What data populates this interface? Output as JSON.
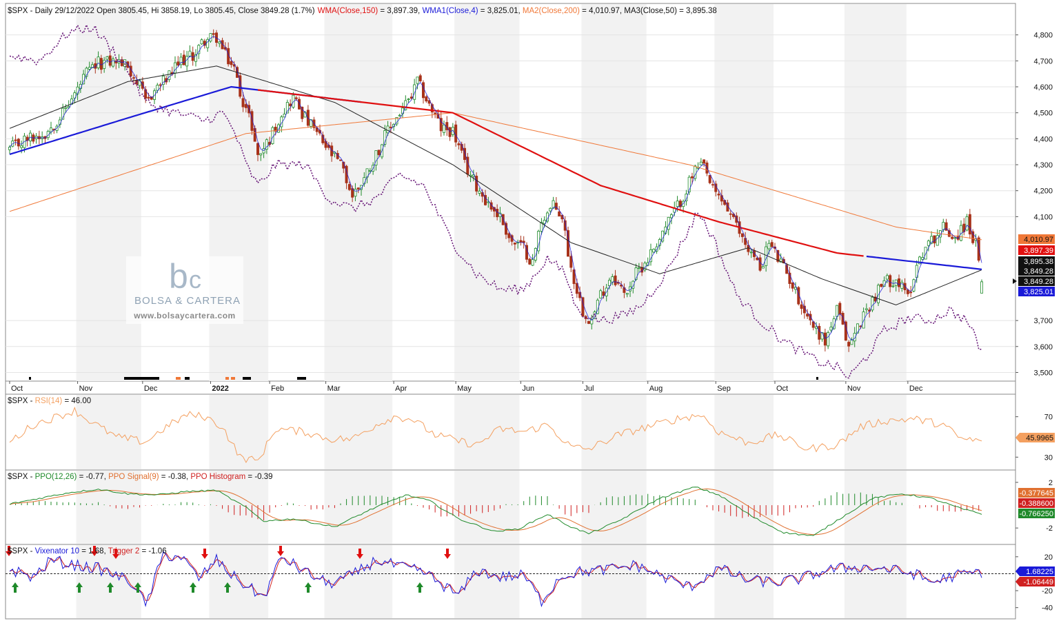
{
  "chart_data": {
    "type": "candlestick",
    "symbol": "$SPX",
    "colors": {
      "up": "#1f8a2a",
      "down": "#a8321a",
      "wma150": "#e01010",
      "wma4": "#1a1ad8",
      "ma200": "#f07838",
      "ma50": "#222222",
      "dotted": "#6a1a7a",
      "rsi": "#f4a060",
      "ppo": "#1f8a2a",
      "ppo_signal": "#e07030",
      "ppo_hist_up": "#1f8a2a",
      "ppo_hist_down": "#d02020",
      "vix": "#1a1ad8",
      "trigger": "#d02020"
    },
    "header": {
      "prefix": "$SPX - Daily 29/12/2022 Open 3805.45, Hi 3858.19, Lo 3805.45, Close 3849.28 (1.7%)",
      "wma150": "WMA(Close,150)",
      "wma150_val": " = 3,897.39, ",
      "wma4": "WMA1(Close,4)",
      "wma4_val": " = 3,825.01, ",
      "ma200": "MA2(Close,200)",
      "ma200_val": " = 4,010.97, ",
      "ma50": "MA3(Close,50) = 3,895.38"
    },
    "price_axis": {
      "ticks": [
        "4,800",
        "4,700",
        "4,600",
        "4,500",
        "4,400",
        "4,300",
        "4,200",
        "4,100",
        "3,700",
        "3,600",
        "3,500"
      ],
      "values": [
        4800,
        4700,
        4600,
        4500,
        4400,
        4300,
        4200,
        4100,
        3700,
        3600,
        3500
      ],
      "ylim": [
        3480,
        4860
      ]
    },
    "price_badges": [
      {
        "label": "4,010.97",
        "value": 4010.97,
        "color": "#f07838"
      },
      {
        "label": "3,897.39",
        "value": 3897.39,
        "color": "#e01010"
      },
      {
        "label": "3,895.38",
        "value": 3895.38,
        "color": "#111111"
      },
      {
        "label": "3,849.28",
        "value": 3849.28,
        "color": "#111111"
      },
      {
        "label": "3,849.28",
        "value": 3849.28,
        "color": "#111111"
      },
      {
        "label": "3,825.01",
        "value": 3825.01,
        "color": "#1a1ad8"
      }
    ],
    "months": [
      "Oct",
      "Nov",
      "Dec",
      "2022",
      "Feb",
      "Mar",
      "Apr",
      "May",
      "Jun",
      "Jul",
      "Aug",
      "Sep",
      "Oct",
      "Nov",
      "Dec"
    ],
    "month_start_index": [
      0,
      23,
      45,
      68,
      88,
      107,
      130,
      151,
      173,
      194,
      216,
      239,
      259,
      283,
      304
    ],
    "n_days": 330,
    "price_keyframes": [
      [
        0,
        4360
      ],
      [
        6,
        4400
      ],
      [
        12,
        4420
      ],
      [
        18,
        4500
      ],
      [
        22,
        4570
      ],
      [
        26,
        4650
      ],
      [
        30,
        4690
      ],
      [
        36,
        4700
      ],
      [
        40,
        4680
      ],
      [
        44,
        4600
      ],
      [
        46,
        4540
      ],
      [
        50,
        4600
      ],
      [
        54,
        4640
      ],
      [
        58,
        4700
      ],
      [
        62,
        4720
      ],
      [
        66,
        4780
      ],
      [
        70,
        4790
      ],
      [
        73,
        4720
      ],
      [
        76,
        4670
      ],
      [
        78,
        4580
      ],
      [
        82,
        4450
      ],
      [
        84,
        4330
      ],
      [
        88,
        4400
      ],
      [
        92,
        4500
      ],
      [
        96,
        4560
      ],
      [
        100,
        4480
      ],
      [
        104,
        4420
      ],
      [
        108,
        4350
      ],
      [
        112,
        4300
      ],
      [
        116,
        4180
      ],
      [
        120,
        4250
      ],
      [
        124,
        4340
      ],
      [
        128,
        4430
      ],
      [
        132,
        4500
      ],
      [
        136,
        4560
      ],
      [
        138,
        4620
      ],
      [
        142,
        4530
      ],
      [
        146,
        4440
      ],
      [
        150,
        4430
      ],
      [
        154,
        4300
      ],
      [
        158,
        4220
      ],
      [
        162,
        4150
      ],
      [
        166,
        4100
      ],
      [
        170,
        4000
      ],
      [
        174,
        3980
      ],
      [
        177,
        3920
      ],
      [
        180,
        4090
      ],
      [
        184,
        4140
      ],
      [
        187,
        4100
      ],
      [
        190,
        3900
      ],
      [
        194,
        3740
      ],
      [
        197,
        3700
      ],
      [
        200,
        3800
      ],
      [
        204,
        3880
      ],
      [
        208,
        3800
      ],
      [
        212,
        3880
      ],
      [
        216,
        3940
      ],
      [
        220,
        4020
      ],
      [
        224,
        4100
      ],
      [
        228,
        4180
      ],
      [
        232,
        4280
      ],
      [
        235,
        4290
      ],
      [
        238,
        4200
      ],
      [
        242,
        4150
      ],
      [
        246,
        4060
      ],
      [
        250,
        3980
      ],
      [
        254,
        3900
      ],
      [
        257,
        4000
      ],
      [
        260,
        3940
      ],
      [
        264,
        3860
      ],
      [
        268,
        3760
      ],
      [
        272,
        3680
      ],
      [
        276,
        3620
      ],
      [
        280,
        3740
      ],
      [
        284,
        3600
      ],
      [
        288,
        3700
      ],
      [
        292,
        3780
      ],
      [
        296,
        3850
      ],
      [
        300,
        3860
      ],
      [
        304,
        3790
      ],
      [
        308,
        3950
      ],
      [
        312,
        4010
      ],
      [
        316,
        4060
      ],
      [
        320,
        4020
      ],
      [
        324,
        4080
      ],
      [
        327,
        3990
      ],
      [
        329,
        3849
      ]
    ],
    "ma200_keyframes": [
      [
        0,
        4120
      ],
      [
        80,
        4420
      ],
      [
        150,
        4500
      ],
      [
        230,
        4300
      ],
      [
        300,
        4060
      ],
      [
        329,
        4011
      ]
    ],
    "wma150_keyframes": [
      [
        0,
        4340
      ],
      [
        40,
        4480
      ],
      [
        75,
        4600
      ],
      [
        120,
        4540
      ],
      [
        150,
        4500
      ],
      [
        200,
        4220
      ],
      [
        240,
        4080
      ],
      [
        280,
        3960
      ],
      [
        329,
        3897
      ]
    ],
    "ma50_keyframes": [
      [
        0,
        4440
      ],
      [
        40,
        4620
      ],
      [
        70,
        4680
      ],
      [
        110,
        4540
      ],
      [
        150,
        4300
      ],
      [
        190,
        4000
      ],
      [
        220,
        3880
      ],
      [
        250,
        3980
      ],
      [
        275,
        3860
      ],
      [
        300,
        3760
      ],
      [
        329,
        3895
      ]
    ],
    "dotted_keyframes": [
      [
        0,
        4720
      ],
      [
        10,
        4700
      ],
      [
        20,
        4810
      ],
      [
        28,
        4830
      ],
      [
        38,
        4700
      ],
      [
        46,
        4540
      ],
      [
        56,
        4500
      ],
      [
        66,
        4470
      ],
      [
        72,
        4500
      ],
      [
        76,
        4430
      ],
      [
        80,
        4300
      ],
      [
        84,
        4220
      ],
      [
        90,
        4300
      ],
      [
        100,
        4300
      ],
      [
        108,
        4170
      ],
      [
        116,
        4130
      ],
      [
        124,
        4170
      ],
      [
        132,
        4260
      ],
      [
        140,
        4220
      ],
      [
        150,
        4000
      ],
      [
        158,
        3880
      ],
      [
        166,
        3820
      ],
      [
        174,
        3820
      ],
      [
        178,
        3880
      ],
      [
        182,
        3940
      ],
      [
        188,
        3880
      ],
      [
        192,
        3740
      ],
      [
        200,
        3700
      ],
      [
        208,
        3720
      ],
      [
        214,
        3760
      ],
      [
        222,
        3880
      ],
      [
        228,
        4010
      ],
      [
        233,
        4120
      ],
      [
        238,
        4020
      ],
      [
        246,
        3800
      ],
      [
        254,
        3700
      ],
      [
        262,
        3620
      ],
      [
        268,
        3580
      ],
      [
        274,
        3540
      ],
      [
        280,
        3520
      ],
      [
        284,
        3480
      ],
      [
        290,
        3560
      ],
      [
        296,
        3660
      ],
      [
        304,
        3710
      ],
      [
        312,
        3700
      ],
      [
        318,
        3740
      ],
      [
        324,
        3700
      ],
      [
        329,
        3580
      ]
    ],
    "rsi": {
      "label": "$SPX - ",
      "name": "RSI(14)",
      "value_text": " = 46.00",
      "badge": "45.9965",
      "ticks": [
        "70",
        "30"
      ],
      "tick_values": [
        70,
        30
      ],
      "ylim": [
        20,
        80
      ],
      "keyframes": [
        [
          0,
          45
        ],
        [
          8,
          62
        ],
        [
          16,
          70
        ],
        [
          22,
          76
        ],
        [
          26,
          68
        ],
        [
          36,
          50
        ],
        [
          46,
          45
        ],
        [
          52,
          58
        ],
        [
          60,
          72
        ],
        [
          66,
          70
        ],
        [
          72,
          60
        ],
        [
          78,
          30
        ],
        [
          84,
          26
        ],
        [
          90,
          58
        ],
        [
          100,
          55
        ],
        [
          108,
          48
        ],
        [
          116,
          48
        ],
        [
          124,
          62
        ],
        [
          130,
          70
        ],
        [
          136,
          68
        ],
        [
          144,
          52
        ],
        [
          152,
          46
        ],
        [
          158,
          42
        ],
        [
          166,
          58
        ],
        [
          174,
          55
        ],
        [
          182,
          62
        ],
        [
          190,
          40
        ],
        [
          196,
          38
        ],
        [
          206,
          52
        ],
        [
          216,
          60
        ],
        [
          226,
          68
        ],
        [
          234,
          72
        ],
        [
          240,
          55
        ],
        [
          250,
          44
        ],
        [
          260,
          52
        ],
        [
          270,
          38
        ],
        [
          280,
          42
        ],
        [
          288,
          60
        ],
        [
          296,
          66
        ],
        [
          306,
          68
        ],
        [
          316,
          62
        ],
        [
          322,
          48
        ],
        [
          329,
          46
        ]
      ]
    },
    "ppo": {
      "label": "$SPX - ",
      "name": "PPO(12,26)",
      "value_text": " = -0.77, ",
      "signal_name": "PPO Signal(9)",
      "signal_value_text": " = -0.38, ",
      "hist_name": "PPO Histogram",
      "hist_value_text": " = -0.39",
      "badges": [
        {
          "label": "-0.377645",
          "value": -0.38,
          "color": "#e07030"
        },
        {
          "label": "-0.388600",
          "value": -0.39,
          "color": "#d02020"
        },
        {
          "label": "-0.766250",
          "value": -0.77,
          "color": "#1f8a2a"
        }
      ],
      "ticks": [
        "2",
        "-2"
      ],
      "tick_values": [
        2,
        -2
      ],
      "ylim": [
        -3.2,
        2.6
      ],
      "keyframes": [
        [
          0,
          0.1
        ],
        [
          10,
          0.6
        ],
        [
          20,
          1.1
        ],
        [
          30,
          1.4
        ],
        [
          40,
          1.0
        ],
        [
          50,
          0.9
        ],
        [
          60,
          1.2
        ],
        [
          70,
          1.3
        ],
        [
          80,
          -0.2
        ],
        [
          86,
          -1.4
        ],
        [
          96,
          -1.2
        ],
        [
          110,
          -1.9
        ],
        [
          122,
          -0.4
        ],
        [
          134,
          0.9
        ],
        [
          142,
          0.4
        ],
        [
          152,
          -1.2
        ],
        [
          164,
          -2.3
        ],
        [
          172,
          -2.1
        ],
        [
          182,
          -0.8
        ],
        [
          190,
          -1.9
        ],
        [
          196,
          -2.5
        ],
        [
          206,
          -1.4
        ],
        [
          220,
          0.6
        ],
        [
          232,
          1.6
        ],
        [
          240,
          0.9
        ],
        [
          252,
          -1.1
        ],
        [
          262,
          -2.4
        ],
        [
          272,
          -2.7
        ],
        [
          282,
          -1.0
        ],
        [
          292,
          0.6
        ],
        [
          302,
          1.0
        ],
        [
          312,
          0.6
        ],
        [
          322,
          -0.3
        ],
        [
          329,
          -0.77
        ]
      ]
    },
    "vix": {
      "label": "$SPX - ",
      "name": "Vixenator 10",
      "value_text": " = 1.68, ",
      "trigger_name": "Trigger 2",
      "trigger_value_text": " = -1.06",
      "badges": [
        {
          "label": "1.68225",
          "value": 1.68,
          "color": "#1a1ad8"
        },
        {
          "label": "-1.06449",
          "value": -1.06,
          "color": "#d02020"
        }
      ],
      "ticks": [
        "20",
        "-20",
        "-40"
      ],
      "tick_values": [
        20,
        -20,
        -40
      ],
      "ylim": [
        -50,
        28
      ],
      "keyframes": [
        [
          0,
          5
        ],
        [
          8,
          -4
        ],
        [
          14,
          16
        ],
        [
          22,
          10
        ],
        [
          30,
          6
        ],
        [
          36,
          -2
        ],
        [
          42,
          -12
        ],
        [
          46,
          -38
        ],
        [
          52,
          22
        ],
        [
          58,
          20
        ],
        [
          64,
          -6
        ],
        [
          70,
          16
        ],
        [
          76,
          -4
        ],
        [
          80,
          -14
        ],
        [
          86,
          -28
        ],
        [
          92,
          20
        ],
        [
          100,
          2
        ],
        [
          108,
          -12
        ],
        [
          116,
          -2
        ],
        [
          124,
          16
        ],
        [
          132,
          8
        ],
        [
          140,
          2
        ],
        [
          146,
          -12
        ],
        [
          152,
          -26
        ],
        [
          158,
          4
        ],
        [
          166,
          -4
        ],
        [
          174,
          -2
        ],
        [
          180,
          -32
        ],
        [
          186,
          -4
        ],
        [
          192,
          2
        ],
        [
          200,
          4
        ],
        [
          212,
          10
        ],
        [
          220,
          -2
        ],
        [
          230,
          -16
        ],
        [
          240,
          6
        ],
        [
          250,
          -8
        ],
        [
          260,
          -10
        ],
        [
          268,
          -6
        ],
        [
          276,
          4
        ],
        [
          286,
          8
        ],
        [
          296,
          6
        ],
        [
          306,
          0
        ],
        [
          312,
          -10
        ],
        [
          320,
          -2
        ],
        [
          329,
          2
        ]
      ],
      "signals_up_idx": [
        2,
        22,
        33,
        43,
        62,
        73,
        98,
        136
      ],
      "signals_down_idx": [
        0,
        30,
        37,
        65,
        90,
        116,
        144
      ]
    },
    "watermark": {
      "brand": "BOLSA & CARTERA",
      "url": "www.bolsaycartera.com"
    }
  }
}
